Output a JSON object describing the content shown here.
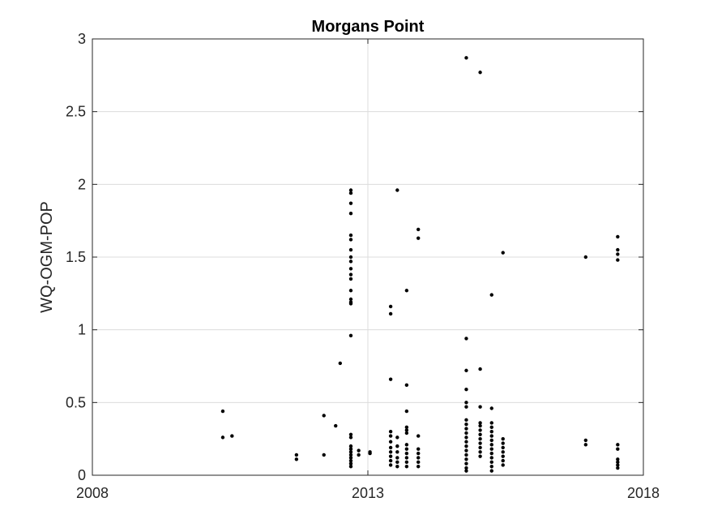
{
  "chart_data": {
    "type": "scatter",
    "title": "Morgans Point",
    "xlabel": "",
    "ylabel": "WQ-OGM-POP",
    "xlim": [
      "2008",
      "2018"
    ],
    "ylim": [
      0,
      3
    ],
    "x_ticks": [
      "2008",
      "2013",
      "2018"
    ],
    "y_ticks": [
      "0",
      "0.5",
      "1",
      "1.5",
      "2",
      "2.5",
      "3"
    ],
    "grid": true,
    "grid_lines_x": [
      "2013"
    ],
    "grid_lines_y": [
      0.5,
      1,
      1.5,
      2,
      2.5
    ],
    "marker_color": "#000000",
    "series": [
      {
        "points": [
          [
            "2010-05-15",
            0.44
          ],
          [
            "2010-05-15",
            0.26
          ],
          [
            "2010-07-15",
            0.27
          ],
          [
            "2011-09-15",
            0.14
          ],
          [
            "2011-09-15",
            0.11
          ],
          [
            "2012-03-15",
            0.41
          ],
          [
            "2012-03-15",
            0.14
          ],
          [
            "2012-06-01",
            0.34
          ],
          [
            "2012-07-01",
            0.77
          ],
          [
            "2012-09-10",
            1.96
          ],
          [
            "2012-09-10",
            1.94
          ],
          [
            "2012-09-10",
            1.87
          ],
          [
            "2012-09-10",
            1.8
          ],
          [
            "2012-09-10",
            1.65
          ],
          [
            "2012-09-10",
            1.62
          ],
          [
            "2012-09-10",
            1.55
          ],
          [
            "2012-09-10",
            1.5
          ],
          [
            "2012-09-10",
            1.47
          ],
          [
            "2012-09-10",
            1.42
          ],
          [
            "2012-09-10",
            1.38
          ],
          [
            "2012-09-10",
            1.35
          ],
          [
            "2012-09-10",
            1.27
          ],
          [
            "2012-09-10",
            1.21
          ],
          [
            "2012-09-10",
            1.19
          ],
          [
            "2012-09-10",
            1.18
          ],
          [
            "2012-09-10",
            0.96
          ],
          [
            "2012-09-10",
            0.28
          ],
          [
            "2012-09-10",
            0.26
          ],
          [
            "2012-09-10",
            0.2
          ],
          [
            "2012-09-10",
            0.18
          ],
          [
            "2012-09-10",
            0.16
          ],
          [
            "2012-09-10",
            0.14
          ],
          [
            "2012-09-10",
            0.12
          ],
          [
            "2012-09-10",
            0.1
          ],
          [
            "2012-09-10",
            0.08
          ],
          [
            "2012-09-10",
            0.06
          ],
          [
            "2012-11-01",
            0.17
          ],
          [
            "2012-11-01",
            0.14
          ],
          [
            "2013-01-15",
            0.16
          ],
          [
            "2013-01-15",
            0.15
          ],
          [
            "2013-06-01",
            1.16
          ],
          [
            "2013-06-01",
            1.11
          ],
          [
            "2013-06-01",
            0.66
          ],
          [
            "2013-06-01",
            0.3
          ],
          [
            "2013-06-01",
            0.27
          ],
          [
            "2013-06-01",
            0.23
          ],
          [
            "2013-06-01",
            0.19
          ],
          [
            "2013-06-01",
            0.16
          ],
          [
            "2013-06-01",
            0.13
          ],
          [
            "2013-06-01",
            0.1
          ],
          [
            "2013-06-01",
            0.07
          ],
          [
            "2013-07-15",
            1.96
          ],
          [
            "2013-07-15",
            0.26
          ],
          [
            "2013-07-15",
            0.2
          ],
          [
            "2013-07-15",
            0.16
          ],
          [
            "2013-07-15",
            0.12
          ],
          [
            "2013-07-15",
            0.09
          ],
          [
            "2013-07-15",
            0.06
          ],
          [
            "2013-09-15",
            1.27
          ],
          [
            "2013-09-15",
            0.62
          ],
          [
            "2013-09-15",
            0.44
          ],
          [
            "2013-09-15",
            0.33
          ],
          [
            "2013-09-15",
            0.31
          ],
          [
            "2013-09-15",
            0.29
          ],
          [
            "2013-09-15",
            0.21
          ],
          [
            "2013-09-15",
            0.18
          ],
          [
            "2013-09-15",
            0.15
          ],
          [
            "2013-09-15",
            0.12
          ],
          [
            "2013-09-15",
            0.09
          ],
          [
            "2013-09-15",
            0.06
          ],
          [
            "2013-12-01",
            1.69
          ],
          [
            "2013-12-01",
            1.63
          ],
          [
            "2013-12-01",
            0.27
          ],
          [
            "2013-12-01",
            0.18
          ],
          [
            "2013-12-01",
            0.15
          ],
          [
            "2013-12-01",
            0.12
          ],
          [
            "2013-12-01",
            0.09
          ],
          [
            "2013-12-01",
            0.06
          ],
          [
            "2014-10-15",
            2.87
          ],
          [
            "2014-10-15",
            0.94
          ],
          [
            "2014-10-15",
            0.72
          ],
          [
            "2014-10-15",
            0.59
          ],
          [
            "2014-10-15",
            0.5
          ],
          [
            "2014-10-15",
            0.47
          ],
          [
            "2014-10-15",
            0.38
          ],
          [
            "2014-10-15",
            0.35
          ],
          [
            "2014-10-15",
            0.32
          ],
          [
            "2014-10-15",
            0.29
          ],
          [
            "2014-10-15",
            0.26
          ],
          [
            "2014-10-15",
            0.23
          ],
          [
            "2014-10-15",
            0.2
          ],
          [
            "2014-10-15",
            0.17
          ],
          [
            "2014-10-15",
            0.14
          ],
          [
            "2014-10-15",
            0.11
          ],
          [
            "2014-10-15",
            0.08
          ],
          [
            "2014-10-15",
            0.05
          ],
          [
            "2014-10-15",
            0.03
          ],
          [
            "2015-01-15",
            2.77
          ],
          [
            "2015-01-15",
            0.73
          ],
          [
            "2015-01-15",
            0.47
          ],
          [
            "2015-01-15",
            0.36
          ],
          [
            "2015-01-15",
            0.34
          ],
          [
            "2015-01-15",
            0.31
          ],
          [
            "2015-01-15",
            0.28
          ],
          [
            "2015-01-15",
            0.25
          ],
          [
            "2015-01-15",
            0.22
          ],
          [
            "2015-01-15",
            0.19
          ],
          [
            "2015-01-15",
            0.16
          ],
          [
            "2015-01-15",
            0.13
          ],
          [
            "2015-04-01",
            1.24
          ],
          [
            "2015-04-01",
            0.46
          ],
          [
            "2015-04-01",
            0.36
          ],
          [
            "2015-04-01",
            0.33
          ],
          [
            "2015-04-01",
            0.3
          ],
          [
            "2015-04-01",
            0.27
          ],
          [
            "2015-04-01",
            0.24
          ],
          [
            "2015-04-01",
            0.21
          ],
          [
            "2015-04-01",
            0.18
          ],
          [
            "2015-04-01",
            0.15
          ],
          [
            "2015-04-01",
            0.12
          ],
          [
            "2015-04-01",
            0.09
          ],
          [
            "2015-04-01",
            0.06
          ],
          [
            "2015-04-01",
            0.03
          ],
          [
            "2015-06-15",
            1.53
          ],
          [
            "2015-06-15",
            0.25
          ],
          [
            "2015-06-15",
            0.22
          ],
          [
            "2015-06-15",
            0.19
          ],
          [
            "2015-06-15",
            0.16
          ],
          [
            "2015-06-15",
            0.13
          ],
          [
            "2015-06-15",
            0.1
          ],
          [
            "2015-06-15",
            0.07
          ],
          [
            "2016-12-15",
            1.5
          ],
          [
            "2016-12-15",
            0.24
          ],
          [
            "2016-12-15",
            0.21
          ],
          [
            "2017-07-15",
            1.64
          ],
          [
            "2017-07-15",
            1.55
          ],
          [
            "2017-07-15",
            1.52
          ],
          [
            "2017-07-15",
            1.48
          ],
          [
            "2017-07-15",
            0.21
          ],
          [
            "2017-07-15",
            0.18
          ],
          [
            "2017-07-15",
            0.11
          ],
          [
            "2017-07-15",
            0.09
          ],
          [
            "2017-07-15",
            0.07
          ],
          [
            "2017-07-15",
            0.05
          ]
        ]
      }
    ]
  }
}
